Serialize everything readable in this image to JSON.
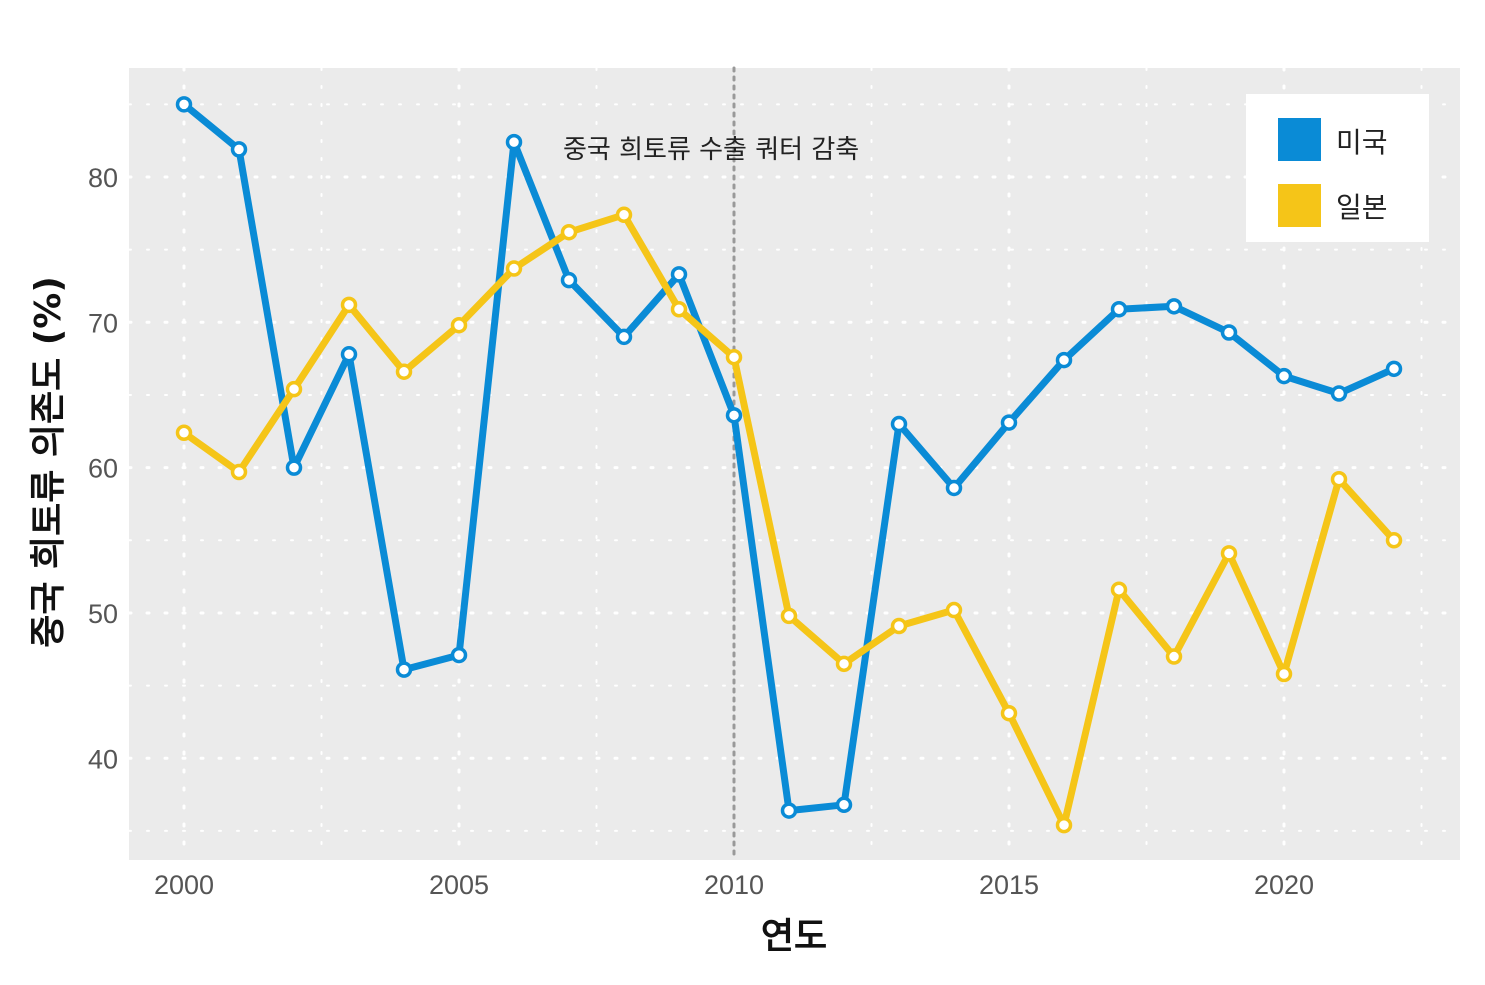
{
  "chart_data": {
    "type": "line",
    "xlabel": "연도",
    "ylabel": "중국 희토류 의존도 (%)",
    "xlim": [
      1999.0,
      2023.2
    ],
    "ylim": [
      33.0,
      87.5
    ],
    "x_ticks": [
      2000,
      2005,
      2010,
      2015,
      2020
    ],
    "y_ticks": [
      40,
      50,
      60,
      70,
      80
    ],
    "grid": true,
    "legend_position": "top-right",
    "annotation": {
      "x": 2010,
      "text": "중국 희토류 수출 쿼터 감축",
      "style": "dotted-vertical-line"
    },
    "x": [
      2000,
      2001,
      2002,
      2003,
      2004,
      2005,
      2006,
      2007,
      2008,
      2009,
      2010,
      2011,
      2012,
      2013,
      2014,
      2015,
      2016,
      2017,
      2018,
      2019,
      2020,
      2021,
      2022
    ],
    "series": [
      {
        "name": "미국",
        "color": "#0a8bd6",
        "values": [
          85.0,
          81.9,
          60.0,
          67.8,
          46.1,
          47.1,
          82.4,
          72.9,
          69.0,
          73.3,
          63.6,
          36.4,
          36.8,
          63.0,
          58.6,
          63.1,
          67.4,
          70.9,
          71.1,
          69.3,
          66.3,
          65.1,
          66.8
        ]
      },
      {
        "name": "일본",
        "color": "#f5c518",
        "values": [
          62.4,
          59.7,
          65.4,
          71.2,
          66.6,
          69.8,
          73.7,
          76.2,
          77.4,
          70.9,
          67.6,
          49.8,
          46.5,
          49.1,
          50.2,
          43.1,
          35.4,
          51.6,
          47.0,
          54.1,
          45.8,
          59.2,
          55.0
        ]
      }
    ]
  }
}
